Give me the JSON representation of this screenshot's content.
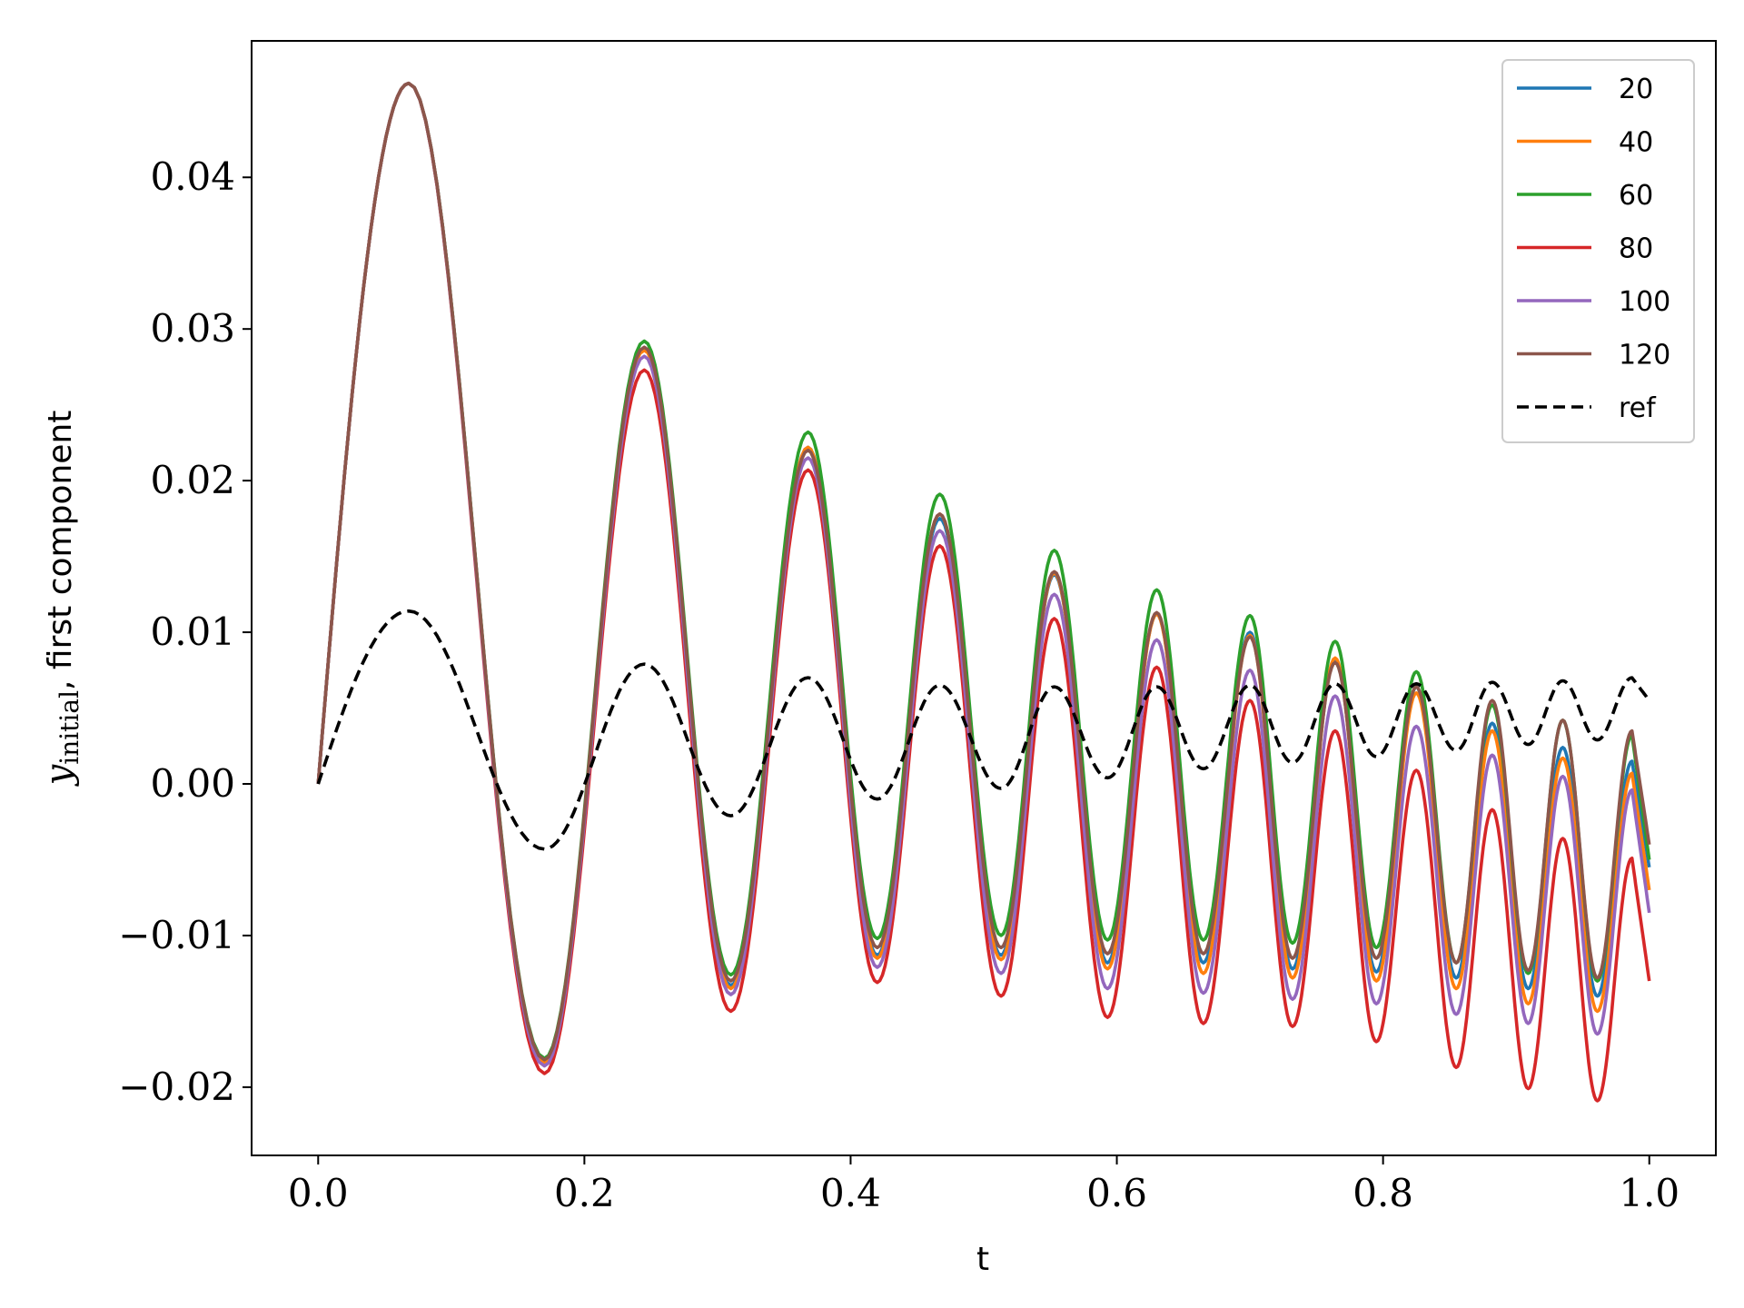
{
  "chart_data": {
    "type": "line",
    "xlabel": "t",
    "ylabel_main": "y",
    "ylabel_sub": "initial",
    "ylabel_rest": ", first component",
    "xlim": [
      -0.05,
      1.05
    ],
    "ylim": [
      -0.0245,
      0.049
    ],
    "xticks": [
      0.0,
      0.2,
      0.4,
      0.6,
      0.8,
      1.0
    ],
    "xtick_labels": [
      "0.0",
      "0.2",
      "0.4",
      "0.6",
      "0.8",
      "1.0"
    ],
    "yticks": [
      -0.02,
      -0.01,
      0.0,
      0.01,
      0.02,
      0.03,
      0.04
    ],
    "ytick_labels": [
      "−0.02",
      "−0.01",
      "0.00",
      "0.01",
      "0.02",
      "0.03",
      "0.04"
    ],
    "grid": false,
    "legend_position": "top-right",
    "series": [
      {
        "name": "20",
        "color": "#1f77b4",
        "style": "solid",
        "peaks": [
          [
            0.0,
            0.0
          ],
          [
            0.068,
            0.0462
          ],
          [
            0.17,
            -0.0183
          ],
          [
            0.245,
            0.0287
          ],
          [
            0.31,
            -0.0133
          ],
          [
            0.368,
            0.0222
          ],
          [
            0.42,
            -0.0113
          ],
          [
            0.467,
            0.0175
          ],
          [
            0.513,
            -0.0113
          ],
          [
            0.553,
            0.0138
          ],
          [
            0.593,
            -0.0118
          ],
          [
            0.63,
            0.0112
          ],
          [
            0.665,
            -0.0118
          ],
          [
            0.7,
            0.01
          ],
          [
            0.732,
            -0.0122
          ],
          [
            0.764,
            0.0082
          ],
          [
            0.795,
            -0.0124
          ],
          [
            0.825,
            0.0064
          ],
          [
            0.855,
            -0.0128
          ],
          [
            0.882,
            0.004
          ],
          [
            0.909,
            -0.0135
          ],
          [
            0.935,
            0.0024
          ],
          [
            0.961,
            -0.014
          ],
          [
            0.987,
            0.0015
          ],
          [
            1.0,
            -0.0055
          ]
        ]
      },
      {
        "name": "40",
        "color": "#ff7f0e",
        "style": "solid",
        "peaks": [
          [
            0.0,
            0.0
          ],
          [
            0.068,
            0.0462
          ],
          [
            0.17,
            -0.0184
          ],
          [
            0.245,
            0.0286
          ],
          [
            0.31,
            -0.0135
          ],
          [
            0.368,
            0.0222
          ],
          [
            0.42,
            -0.0115
          ],
          [
            0.467,
            0.0178
          ],
          [
            0.513,
            -0.0116
          ],
          [
            0.553,
            0.0139
          ],
          [
            0.593,
            -0.0122
          ],
          [
            0.63,
            0.0112
          ],
          [
            0.665,
            -0.0125
          ],
          [
            0.7,
            0.0098
          ],
          [
            0.732,
            -0.0128
          ],
          [
            0.764,
            0.0083
          ],
          [
            0.795,
            -0.013
          ],
          [
            0.825,
            0.006
          ],
          [
            0.855,
            -0.0135
          ],
          [
            0.882,
            0.0035
          ],
          [
            0.909,
            -0.0145
          ],
          [
            0.935,
            0.0017
          ],
          [
            0.961,
            -0.015
          ],
          [
            0.987,
            0.0007
          ],
          [
            1.0,
            -0.007
          ]
        ]
      },
      {
        "name": "60",
        "color": "#2ca02c",
        "style": "solid",
        "peaks": [
          [
            0.0,
            0.0
          ],
          [
            0.068,
            0.0462
          ],
          [
            0.17,
            -0.0181
          ],
          [
            0.245,
            0.0292
          ],
          [
            0.31,
            -0.0126
          ],
          [
            0.368,
            0.0232
          ],
          [
            0.42,
            -0.0102
          ],
          [
            0.467,
            0.0191
          ],
          [
            0.513,
            -0.01
          ],
          [
            0.553,
            0.0154
          ],
          [
            0.593,
            -0.0103
          ],
          [
            0.63,
            0.0128
          ],
          [
            0.665,
            -0.0103
          ],
          [
            0.7,
            0.0111
          ],
          [
            0.732,
            -0.0105
          ],
          [
            0.764,
            0.0094
          ],
          [
            0.795,
            -0.0108
          ],
          [
            0.825,
            0.0074
          ],
          [
            0.855,
            -0.0118
          ],
          [
            0.882,
            0.0052
          ],
          [
            0.909,
            -0.0125
          ],
          [
            0.935,
            0.0042
          ],
          [
            0.961,
            -0.013
          ],
          [
            0.987,
            0.0032
          ],
          [
            1.0,
            -0.005
          ]
        ]
      },
      {
        "name": "80",
        "color": "#d62728",
        "style": "solid",
        "peaks": [
          [
            0.0,
            0.0
          ],
          [
            0.068,
            0.0462
          ],
          [
            0.17,
            -0.0191
          ],
          [
            0.245,
            0.0273
          ],
          [
            0.31,
            -0.015
          ],
          [
            0.368,
            0.0207
          ],
          [
            0.42,
            -0.0131
          ],
          [
            0.467,
            0.0157
          ],
          [
            0.513,
            -0.014
          ],
          [
            0.553,
            0.0109
          ],
          [
            0.593,
            -0.0154
          ],
          [
            0.63,
            0.0077
          ],
          [
            0.665,
            -0.0158
          ],
          [
            0.7,
            0.0055
          ],
          [
            0.732,
            -0.016
          ],
          [
            0.764,
            0.0035
          ],
          [
            0.795,
            -0.017
          ],
          [
            0.825,
            0.0009
          ],
          [
            0.855,
            -0.0187
          ],
          [
            0.882,
            -0.0017
          ],
          [
            0.909,
            -0.0201
          ],
          [
            0.935,
            -0.0036
          ],
          [
            0.961,
            -0.0209
          ],
          [
            0.987,
            -0.0049
          ],
          [
            1.0,
            -0.013
          ]
        ]
      },
      {
        "name": "100",
        "color": "#9467bd",
        "style": "solid",
        "peaks": [
          [
            0.0,
            0.0
          ],
          [
            0.068,
            0.0462
          ],
          [
            0.17,
            -0.0186
          ],
          [
            0.245,
            0.0282
          ],
          [
            0.31,
            -0.0139
          ],
          [
            0.368,
            0.0215
          ],
          [
            0.42,
            -0.0121
          ],
          [
            0.467,
            0.0167
          ],
          [
            0.513,
            -0.0125
          ],
          [
            0.553,
            0.0125
          ],
          [
            0.593,
            -0.0135
          ],
          [
            0.63,
            0.0095
          ],
          [
            0.665,
            -0.0138
          ],
          [
            0.7,
            0.0075
          ],
          [
            0.732,
            -0.0142
          ],
          [
            0.764,
            0.0058
          ],
          [
            0.795,
            -0.0145
          ],
          [
            0.825,
            0.0038
          ],
          [
            0.855,
            -0.0152
          ],
          [
            0.882,
            0.0019
          ],
          [
            0.909,
            -0.0158
          ],
          [
            0.935,
            0.0005
          ],
          [
            0.961,
            -0.0165
          ],
          [
            0.987,
            -0.0004
          ],
          [
            1.0,
            -0.0085
          ]
        ]
      },
      {
        "name": "120",
        "color": "#8c564b",
        "style": "solid",
        "peaks": [
          [
            0.0,
            0.0
          ],
          [
            0.068,
            0.0462
          ],
          [
            0.17,
            -0.0182
          ],
          [
            0.245,
            0.0288
          ],
          [
            0.31,
            -0.013
          ],
          [
            0.368,
            0.022
          ],
          [
            0.42,
            -0.0108
          ],
          [
            0.467,
            0.0178
          ],
          [
            0.513,
            -0.0108
          ],
          [
            0.553,
            0.014
          ],
          [
            0.593,
            -0.0112
          ],
          [
            0.63,
            0.0113
          ],
          [
            0.665,
            -0.0112
          ],
          [
            0.7,
            0.0097
          ],
          [
            0.732,
            -0.0115
          ],
          [
            0.764,
            0.008
          ],
          [
            0.795,
            -0.0115
          ],
          [
            0.825,
            0.0064
          ],
          [
            0.855,
            -0.0118
          ],
          [
            0.882,
            0.0055
          ],
          [
            0.909,
            -0.0123
          ],
          [
            0.935,
            0.0042
          ],
          [
            0.961,
            -0.0128
          ],
          [
            0.987,
            0.0035
          ],
          [
            1.0,
            -0.004
          ]
        ]
      },
      {
        "name": "ref",
        "color": "#000000",
        "style": "dashed",
        "peaks": [
          [
            0.0,
            0.0
          ],
          [
            0.068,
            0.0114
          ],
          [
            0.17,
            -0.0043
          ],
          [
            0.245,
            0.0079
          ],
          [
            0.31,
            -0.0021
          ],
          [
            0.368,
            0.007
          ],
          [
            0.42,
            -0.001
          ],
          [
            0.467,
            0.0065
          ],
          [
            0.513,
            -0.0003
          ],
          [
            0.553,
            0.0064
          ],
          [
            0.593,
            0.0004
          ],
          [
            0.63,
            0.0064
          ],
          [
            0.665,
            0.001
          ],
          [
            0.7,
            0.0065
          ],
          [
            0.732,
            0.0014
          ],
          [
            0.764,
            0.0066
          ],
          [
            0.795,
            0.0018
          ],
          [
            0.825,
            0.0066
          ],
          [
            0.855,
            0.0022
          ],
          [
            0.882,
            0.0067
          ],
          [
            0.909,
            0.0026
          ],
          [
            0.935,
            0.0068
          ],
          [
            0.961,
            0.0029
          ],
          [
            0.987,
            0.007
          ],
          [
            1.0,
            0.0055
          ]
        ]
      }
    ]
  }
}
